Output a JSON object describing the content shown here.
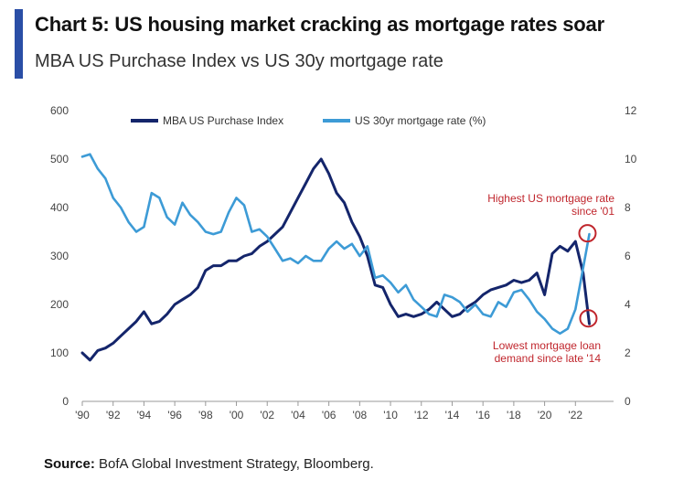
{
  "header": {
    "title": "Chart 5: US housing market cracking as mortgage rates soar",
    "subtitle": "MBA US Purchase Index vs US 30y mortgage rate"
  },
  "footer": {
    "source_label": "Source:",
    "source_text": "BofA Global Investment Strategy, Bloomberg."
  },
  "colors": {
    "accent": "#2a4ea6",
    "purchase_index": "#14256b",
    "mortgage_rate": "#3d9bd6",
    "annotation": "#c0262d"
  },
  "chart_data": {
    "type": "line",
    "title": "Chart 5: US housing market cracking as mortgage rates soar",
    "subtitle": "MBA US Purchase Index vs US 30y mortgage rate",
    "x_range": [
      1990,
      2024
    ],
    "x_ticks": [
      "'90",
      "'92",
      "'94",
      "'96",
      "'98",
      "'00",
      "'02",
      "'04",
      "'06",
      "'08",
      "'10",
      "'12",
      "'14",
      "'16",
      "'18",
      "'20",
      "'22"
    ],
    "y_left": {
      "ylim": [
        0,
        600
      ],
      "ticks": [
        "0",
        "100",
        "200",
        "300",
        "400",
        "500",
        "600"
      ]
    },
    "y_right": {
      "ylim": [
        0,
        12
      ],
      "ticks": [
        "0",
        "2",
        "4",
        "6",
        "8",
        "10",
        "12"
      ]
    },
    "grid": false,
    "legend_position": "top",
    "series": [
      {
        "name": "MBA US Purchase Index",
        "axis": "left",
        "x": [
          1990.0,
          1990.5,
          1991.0,
          1991.5,
          1992.0,
          1992.5,
          1993.0,
          1993.5,
          1994.0,
          1994.5,
          1995.0,
          1995.5,
          1996.0,
          1996.5,
          1997.0,
          1997.5,
          1998.0,
          1998.5,
          1999.0,
          1999.5,
          2000.0,
          2000.5,
          2001.0,
          2001.5,
          2002.0,
          2002.5,
          2003.0,
          2003.5,
          2004.0,
          2004.5,
          2005.0,
          2005.5,
          2006.0,
          2006.5,
          2007.0,
          2007.5,
          2008.0,
          2008.5,
          2009.0,
          2009.5,
          2010.0,
          2010.5,
          2011.0,
          2011.5,
          2012.0,
          2012.5,
          2013.0,
          2013.5,
          2014.0,
          2014.5,
          2015.0,
          2015.5,
          2016.0,
          2016.5,
          2017.0,
          2017.5,
          2018.0,
          2018.5,
          2019.0,
          2019.5,
          2020.0,
          2020.5,
          2021.0,
          2021.5,
          2022.0,
          2022.5,
          2022.9
        ],
        "values": [
          100,
          85,
          105,
          110,
          120,
          135,
          150,
          165,
          185,
          160,
          165,
          180,
          200,
          210,
          220,
          235,
          270,
          280,
          280,
          290,
          290,
          300,
          305,
          320,
          330,
          345,
          360,
          390,
          420,
          450,
          480,
          500,
          470,
          430,
          410,
          370,
          340,
          300,
          240,
          235,
          200,
          175,
          180,
          175,
          180,
          190,
          205,
          190,
          175,
          180,
          195,
          205,
          220,
          230,
          235,
          240,
          250,
          245,
          250,
          265,
          220,
          305,
          320,
          310,
          330,
          265,
          160
        ]
      },
      {
        "name": "US 30yr mortgage rate (%)",
        "axis": "right",
        "x": [
          1990.0,
          1990.5,
          1991.0,
          1991.5,
          1992.0,
          1992.5,
          1993.0,
          1993.5,
          1994.0,
          1994.5,
          1995.0,
          1995.5,
          1996.0,
          1996.5,
          1997.0,
          1997.5,
          1998.0,
          1998.5,
          1999.0,
          1999.5,
          2000.0,
          2000.5,
          2001.0,
          2001.5,
          2002.0,
          2002.5,
          2003.0,
          2003.5,
          2004.0,
          2004.5,
          2005.0,
          2005.5,
          2006.0,
          2006.5,
          2007.0,
          2007.5,
          2008.0,
          2008.5,
          2009.0,
          2009.5,
          2010.0,
          2010.5,
          2011.0,
          2011.5,
          2012.0,
          2012.5,
          2013.0,
          2013.5,
          2014.0,
          2014.5,
          2015.0,
          2015.5,
          2016.0,
          2016.5,
          2017.0,
          2017.5,
          2018.0,
          2018.5,
          2019.0,
          2019.5,
          2020.0,
          2020.5,
          2021.0,
          2021.5,
          2022.0,
          2022.5,
          2022.9
        ],
        "values": [
          10.1,
          10.2,
          9.6,
          9.2,
          8.4,
          8.0,
          7.4,
          7.0,
          7.2,
          8.6,
          8.4,
          7.6,
          7.3,
          8.2,
          7.7,
          7.4,
          7.0,
          6.9,
          7.0,
          7.8,
          8.4,
          8.1,
          7.0,
          7.1,
          6.8,
          6.3,
          5.8,
          5.9,
          5.7,
          6.0,
          5.8,
          5.8,
          6.3,
          6.6,
          6.3,
          6.5,
          6.0,
          6.4,
          5.1,
          5.2,
          4.9,
          4.5,
          4.8,
          4.2,
          3.9,
          3.6,
          3.5,
          4.4,
          4.3,
          4.1,
          3.7,
          4.0,
          3.6,
          3.5,
          4.1,
          3.9,
          4.5,
          4.6,
          4.2,
          3.7,
          3.4,
          3.0,
          2.8,
          3.0,
          3.8,
          5.5,
          6.9
        ]
      }
    ],
    "annotations": [
      {
        "text_lines": [
          "Highest US mortgage rate",
          "since '01"
        ],
        "x": 2022.9,
        "y": 6.9,
        "axis": "right"
      },
      {
        "text_lines": [
          "Lowest mortgage loan",
          "demand since late '14"
        ],
        "x": 2022.9,
        "y": 160,
        "axis": "left"
      }
    ]
  }
}
